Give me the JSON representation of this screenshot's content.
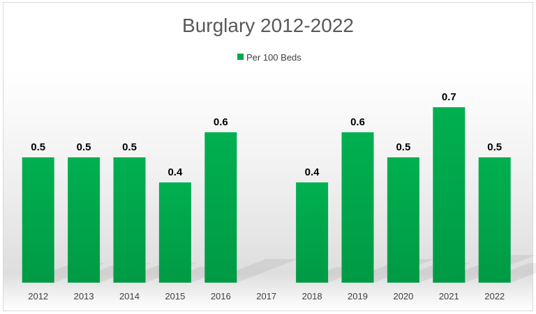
{
  "chart_data": {
    "type": "bar",
    "title": "Burglary 2012-2022",
    "categories": [
      "2012",
      "2013",
      "2014",
      "2015",
      "2016",
      "2017",
      "2018",
      "2019",
      "2020",
      "2021",
      "2022"
    ],
    "series": [
      {
        "name": "Per 100 Beds",
        "color": "#00a84f",
        "values": [
          0.5,
          0.5,
          0.5,
          0.4,
          0.6,
          null,
          0.4,
          0.6,
          0.5,
          0.7,
          0.5
        ],
        "labels": [
          "0.5",
          "0.5",
          "0.5",
          "0.4",
          "0.6",
          "",
          "0.4",
          "0.6",
          "0.5",
          "0.7",
          "0.5"
        ]
      }
    ],
    "xlabel": "",
    "ylabel": "",
    "ylim": [
      0,
      0.7
    ],
    "grid": false,
    "legend_position": "top"
  }
}
